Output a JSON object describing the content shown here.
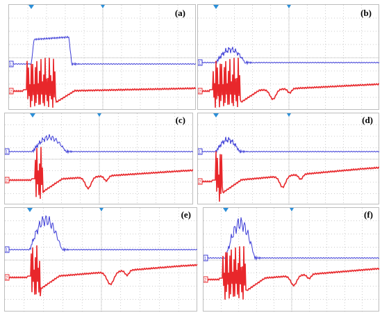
{
  "figure": {
    "panels": [
      {
        "label": "(a)",
        "ch1_marker": "1",
        "ch2_marker": "2"
      },
      {
        "label": "(b)",
        "ch1_marker": "1",
        "ch2_marker": "2"
      },
      {
        "label": "(c)",
        "ch1_marker": "1",
        "ch2_marker": "2"
      },
      {
        "label": "(d)",
        "ch1_marker": "1",
        "ch2_marker": "2"
      },
      {
        "label": "(e)",
        "ch1_marker": "1",
        "ch2_marker": "2"
      },
      {
        "label": "(f)",
        "ch1_marker": "1",
        "ch2_marker": "2"
      }
    ]
  },
  "colors": {
    "channel_1": "#3a3ad6",
    "channel_2": "#e8272b",
    "grid": "#9a9a9a",
    "trigger_marker": "#2b8fd8"
  }
}
